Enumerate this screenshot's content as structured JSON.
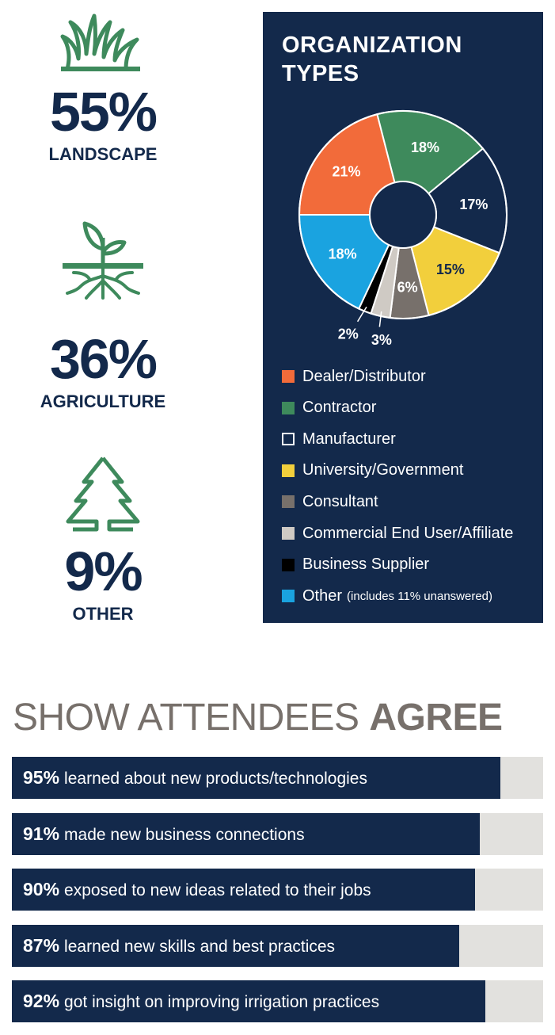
{
  "stats": [
    {
      "value": "55%",
      "label": "LANDSCAPE",
      "icon": "grass-icon"
    },
    {
      "value": "36%",
      "label": "AGRICULTURE",
      "icon": "sprout-roots-icon"
    },
    {
      "value": "9%",
      "label": "OTHER",
      "icon": "pine-tree-icon"
    }
  ],
  "org_panel": {
    "title_line1": "ORGANIZATION",
    "title_line2": "TYPES",
    "legend": [
      {
        "label": "Dealer/Distributor",
        "color": "#f26b3a"
      },
      {
        "label": "Contractor",
        "color": "#3e8a5c"
      },
      {
        "label": "Manufacturer",
        "color": "#13294b"
      },
      {
        "label": "University/Government",
        "color": "#f2cf3c"
      },
      {
        "label": "Consultant",
        "color": "#77706b"
      },
      {
        "label": "Commercial End User/Affiliate",
        "color": "#cfcac4"
      },
      {
        "label": "Business Supplier",
        "color": "#000000"
      },
      {
        "label": "Other",
        "note": "(includes 11% unanswered)",
        "color": "#1aa3e0"
      }
    ]
  },
  "agree": {
    "title_light": "SHOW ATTENDEES",
    "title_bold": "AGREE",
    "items": [
      {
        "pct": "95%",
        "value": 95,
        "text": "learned about new products/technologies"
      },
      {
        "pct": "91%",
        "value": 91,
        "text": "made new business connections"
      },
      {
        "pct": "90%",
        "value": 90,
        "text": "exposed to new ideas related to their jobs"
      },
      {
        "pct": "87%",
        "value": 87,
        "text": "learned new skills and best practices"
      },
      {
        "pct": "92%",
        "value": 92,
        "text": "got insight on improving irrigation practices"
      }
    ]
  },
  "colors": {
    "navy": "#13294b",
    "green": "#3e8a5c",
    "gray_title": "#77706b",
    "bar_track": "#e2e1de"
  },
  "chart_data": [
    {
      "type": "pie",
      "title": "ORGANIZATION TYPES",
      "donut": true,
      "categories": [
        "Dealer/Distributor",
        "Contractor",
        "Manufacturer",
        "University/Government",
        "Consultant",
        "Commercial End User/Affiliate",
        "Business Supplier",
        "Other"
      ],
      "values": [
        21,
        18,
        17,
        15,
        6,
        3,
        2,
        18
      ],
      "data_labels": [
        "21%",
        "18%",
        "17%",
        "15%",
        "6%",
        "3%",
        "2%",
        "18%"
      ],
      "colors": [
        "#f26b3a",
        "#3e8a5c",
        "#13294b",
        "#f2cf3c",
        "#77706b",
        "#cfcac4",
        "#000000",
        "#1aa3e0"
      ],
      "legend": "below"
    },
    {
      "type": "bar",
      "orientation": "horizontal",
      "title": "SHOW ATTENDEES AGREE",
      "categories": [
        "learned about new products/technologies",
        "made new business connections",
        "exposed to new ideas related to their jobs",
        "learned new skills and best practices",
        "got insight on improving irrigation practices"
      ],
      "values": [
        95,
        91,
        90,
        87,
        92
      ],
      "xlim": [
        0,
        100
      ]
    }
  ]
}
